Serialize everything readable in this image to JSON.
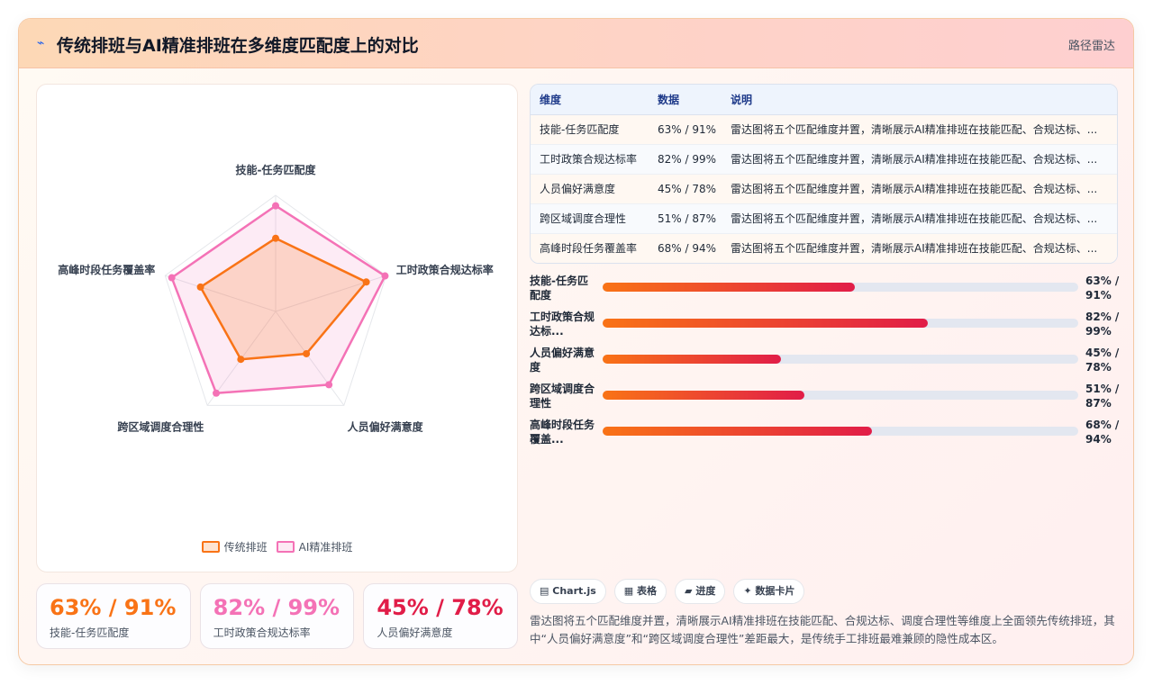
{
  "header": {
    "icon": "line-chart-icon",
    "title": "传统排班与AI精准排班在多维度匹配度上的对比",
    "tag": "路径雷达"
  },
  "colors": {
    "traditional": "#f97316",
    "ai": "#f472b6",
    "accent_red": "#e11d48"
  },
  "chart_data": {
    "type": "radar",
    "axes": [
      "技能-任务匹配度",
      "工时政策合规达标率",
      "人员偏好满意度",
      "跨区域调度合理性",
      "高峰时段任务覆盖率"
    ],
    "rmax": 100,
    "series": [
      {
        "name": "传统排班",
        "values": [
          63,
          82,
          45,
          51,
          68
        ]
      },
      {
        "name": "AI精准排班",
        "values": [
          91,
          99,
          78,
          87,
          94
        ]
      }
    ],
    "legend_position": "bottom"
  },
  "stats": [
    {
      "value": "63% / 91%",
      "label": "技能-任务匹配度",
      "color": "#f97316"
    },
    {
      "value": "82% / 99%",
      "label": "工时政策合规达标率",
      "color": "#f472b6"
    },
    {
      "value": "45% / 78%",
      "label": "人员偏好满意度",
      "color": "#e11d48"
    }
  ],
  "table": {
    "headers": [
      "维度",
      "数据",
      "说明"
    ],
    "rows": [
      {
        "dim": "技能-任务匹配度",
        "value": "63% / 91%",
        "desc": "雷达图将五个匹配维度并置，清晰展示AI精准排班在技能匹配、合规达标、..."
      },
      {
        "dim": "工时政策合规达标率",
        "value": "82% / 99%",
        "desc": "雷达图将五个匹配维度并置，清晰展示AI精准排班在技能匹配、合规达标、..."
      },
      {
        "dim": "人员偏好满意度",
        "value": "45% / 78%",
        "desc": "雷达图将五个匹配维度并置，清晰展示AI精准排班在技能匹配、合规达标、..."
      },
      {
        "dim": "跨区域调度合理性",
        "value": "51% / 87%",
        "desc": "雷达图将五个匹配维度并置，清晰展示AI精准排班在技能匹配、合规达标、..."
      },
      {
        "dim": "高峰时段任务覆盖率",
        "value": "68% / 94%",
        "desc": "雷达图将五个匹配维度并置，清晰展示AI精准排班在技能匹配、合规达标、..."
      }
    ]
  },
  "bars": [
    {
      "label": "技能-任务匹配度",
      "value_text": "63% / 91%",
      "level": 0.53
    },
    {
      "label": "工时政策合规达标...",
      "value_text": "82% / 99%",
      "level": 0.683
    },
    {
      "label": "人员偏好满意度",
      "value_text": "45% / 78%",
      "level": 0.375
    },
    {
      "label": "跨区域调度合理性",
      "value_text": "51% / 87%",
      "level": 0.425
    },
    {
      "label": "高峰时段任务覆盖...",
      "value_text": "68% / 94%",
      "level": 0.567
    }
  ],
  "tags": [
    {
      "icon": "chart-icon",
      "label": "Chart.js"
    },
    {
      "icon": "table-icon",
      "label": "表格"
    },
    {
      "icon": "progress-icon",
      "label": "进度"
    },
    {
      "icon": "card-icon",
      "label": "数据卡片"
    }
  ],
  "tag_glyphs": [
    "▤",
    "▦",
    "▰",
    "✦"
  ],
  "summary": "雷达图将五个匹配维度并置，清晰展示AI精准排班在技能匹配、合规达标、调度合理性等维度上全面领先传统排班，其中“人员偏好满意度”和“跨区域调度合理性”差距最大，是传统手工排班最难兼顾的隐性成本区。"
}
